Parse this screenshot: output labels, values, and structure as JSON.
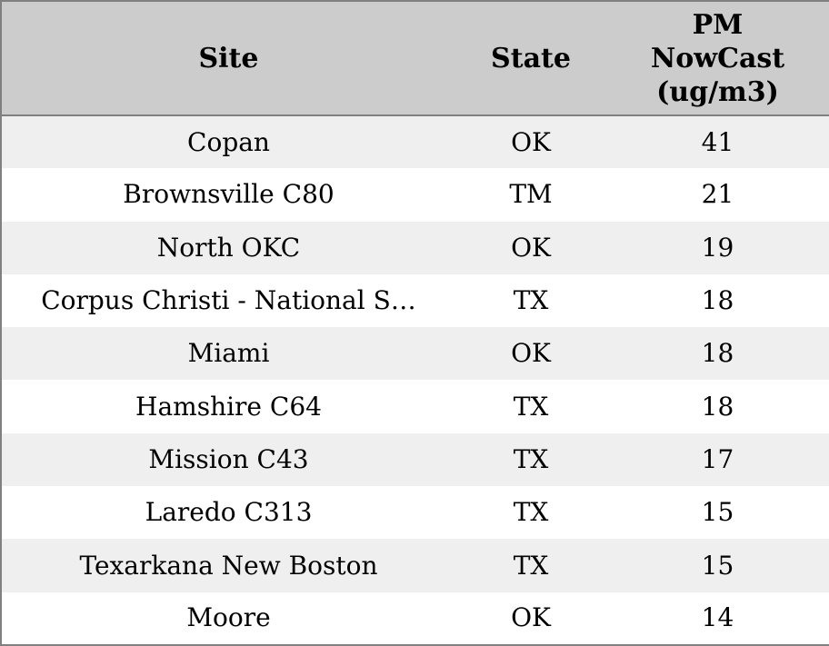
{
  "chart_data": {
    "type": "table",
    "columns": [
      "Site",
      "State",
      "PM NowCast (ug/m3)"
    ],
    "rows": [
      [
        "Copan",
        "OK",
        41
      ],
      [
        "Brownsville C80",
        "TM",
        21
      ],
      [
        "North OKC",
        "OK",
        19
      ],
      [
        "Corpus Christi - National S…",
        "TX",
        18
      ],
      [
        "Miami",
        "OK",
        18
      ],
      [
        "Hamshire C64",
        "TX",
        18
      ],
      [
        "Mission C43",
        "TX",
        17
      ],
      [
        "Laredo C313",
        "TX",
        15
      ],
      [
        "Texarkana New Boston",
        "TX",
        15
      ],
      [
        "Moore",
        "OK",
        14
      ]
    ],
    "title": "",
    "layout_hints": {
      "striped": true,
      "header_position": "top",
      "cell_alignment": "center"
    }
  },
  "colors": {
    "header_bg": "#cccccc",
    "row_alt_bg": "#efefef",
    "row_bg": "#ffffff",
    "border": "#808080",
    "text": "#000000"
  }
}
